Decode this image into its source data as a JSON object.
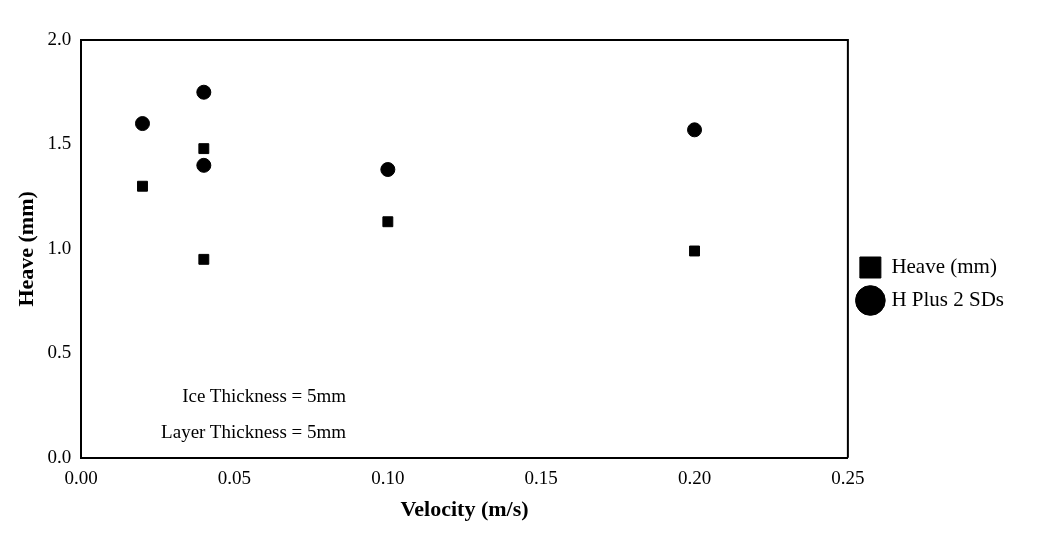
{
  "chart_data": {
    "type": "scatter",
    "xlabel": "Velocity (m/s)",
    "ylabel": "Heave (mm)",
    "xlim": [
      0,
      0.25
    ],
    "xticks": [
      {
        "value": 0,
        "label": "0.00"
      },
      {
        "value": 0.05,
        "label": "0.05"
      },
      {
        "value": 0.1,
        "label": "0.10"
      },
      {
        "value": 0.15,
        "label": "0.15"
      },
      {
        "value": 0.2,
        "label": "0.20"
      },
      {
        "value": 0.25,
        "label": "0.25"
      }
    ],
    "ylim": [
      0,
      2
    ],
    "yticks": [
      {
        "value": 0,
        "label": "0.0"
      },
      {
        "value": 0.5,
        "label": "0.5"
      },
      {
        "value": 1,
        "label": "1.0"
      },
      {
        "value": 1.5,
        "label": "1.5"
      },
      {
        "value": 2,
        "label": "2.0"
      }
    ],
    "grid": false,
    "legend": "right",
    "series": [
      {
        "name": "Heave (mm)",
        "color": "#000000",
        "marker": "square",
        "x": [
          0.02,
          0.04,
          0.04,
          0.1,
          0.2
        ],
        "values": [
          1.3,
          1.48,
          0.95,
          1.13,
          0.99
        ]
      },
      {
        "name": "H Plus 2 SDs",
        "color": "#000000",
        "marker": "circle",
        "x": [
          0.02,
          0.04,
          0.04,
          0.1,
          0.2
        ],
        "values": [
          1.6,
          1.75,
          1.4,
          1.38,
          1.57
        ]
      }
    ],
    "annotations": [
      "Ice Thickness = 5mm",
      "Layer Thickness = 5mm"
    ]
  }
}
